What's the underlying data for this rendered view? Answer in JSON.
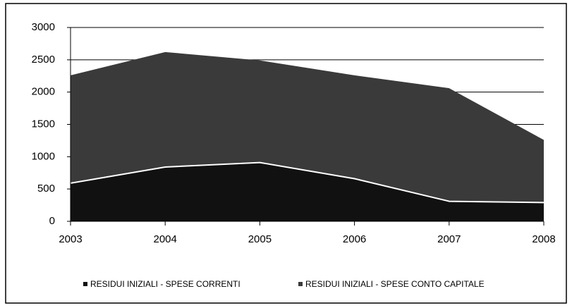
{
  "chart_data": {
    "type": "stacked-area",
    "categories": [
      "2003",
      "2004",
      "2005",
      "2006",
      "2007",
      "2008"
    ],
    "series": [
      {
        "name": "RESIDUI INIZIALI - SPESE CORRENTI",
        "color": "#111111",
        "values": [
          590,
          840,
          910,
          660,
          310,
          290
        ]
      },
      {
        "name": "RESIDUI INIZIALI - SPESE CONTO CAPITALE",
        "color": "#3a3a3a",
        "values": [
          1670,
          1780,
          1580,
          1600,
          1750,
          970
        ]
      }
    ],
    "ylim": [
      0,
      3000
    ],
    "yticks": [
      0,
      500,
      1000,
      1500,
      2000,
      2500,
      3000
    ],
    "grid": true,
    "legend": "bottom"
  }
}
